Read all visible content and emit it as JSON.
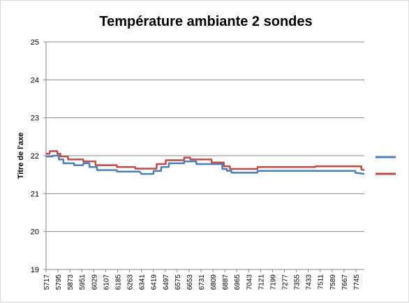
{
  "chart_data": {
    "type": "line",
    "title": "Température ambiante 2 sondes",
    "ylabel": "Titre de l'axe",
    "xlabel": "",
    "ylim": [
      19,
      25
    ],
    "yticks": [
      19,
      20,
      21,
      22,
      23,
      24,
      25
    ],
    "grid": "horizontal",
    "legend": "right",
    "x_tick_labels": [
      "5717",
      "5795",
      "5873",
      "5951",
      "6029",
      "6107",
      "6185",
      "6263",
      "6341",
      "6419",
      "6497",
      "6575",
      "6653",
      "6731",
      "6809",
      "6887",
      "6965",
      "7043",
      "7121",
      "7199",
      "7277",
      "7355",
      "7433",
      "7511",
      "7589",
      "7667",
      "7745"
    ],
    "x_start": 5717,
    "x_step": 78,
    "x_end": 7800,
    "series": [
      {
        "color": "#4a7ebb",
        "points": [
          [
            5717,
            21.98
          ],
          [
            5760,
            21.98
          ],
          [
            5761,
            22.0
          ],
          [
            5800,
            22.0
          ],
          [
            5801,
            21.9
          ],
          [
            5830,
            21.9
          ],
          [
            5831,
            21.8
          ],
          [
            5900,
            21.8
          ],
          [
            5901,
            21.75
          ],
          [
            5960,
            21.75
          ],
          [
            5961,
            21.8
          ],
          [
            6000,
            21.8
          ],
          [
            6001,
            21.7
          ],
          [
            6050,
            21.7
          ],
          [
            6051,
            21.62
          ],
          [
            6180,
            21.62
          ],
          [
            6181,
            21.58
          ],
          [
            6330,
            21.58
          ],
          [
            6340,
            21.52
          ],
          [
            6420,
            21.52
          ],
          [
            6421,
            21.6
          ],
          [
            6470,
            21.6
          ],
          [
            6471,
            21.7
          ],
          [
            6520,
            21.7
          ],
          [
            6521,
            21.8
          ],
          [
            6620,
            21.8
          ],
          [
            6621,
            21.85
          ],
          [
            6700,
            21.85
          ],
          [
            6701,
            21.78
          ],
          [
            6870,
            21.78
          ],
          [
            6871,
            21.65
          ],
          [
            6900,
            21.65
          ],
          [
            6901,
            21.6
          ],
          [
            6930,
            21.6
          ],
          [
            6931,
            21.55
          ],
          [
            7100,
            21.55
          ],
          [
            7101,
            21.6
          ],
          [
            7740,
            21.6
          ],
          [
            7741,
            21.55
          ],
          [
            7800,
            21.52
          ]
        ]
      },
      {
        "color": "#be4b48",
        "points": [
          [
            5717,
            22.05
          ],
          [
            5740,
            22.05
          ],
          [
            5741,
            22.12
          ],
          [
            5790,
            22.12
          ],
          [
            5791,
            22.05
          ],
          [
            5810,
            22.05
          ],
          [
            5811,
            21.98
          ],
          [
            5860,
            21.98
          ],
          [
            5861,
            21.9
          ],
          [
            5960,
            21.9
          ],
          [
            5961,
            21.85
          ],
          [
            6040,
            21.85
          ],
          [
            6041,
            21.75
          ],
          [
            6180,
            21.75
          ],
          [
            6181,
            21.7
          ],
          [
            6300,
            21.7
          ],
          [
            6301,
            21.66
          ],
          [
            6440,
            21.66
          ],
          [
            6441,
            21.78
          ],
          [
            6500,
            21.78
          ],
          [
            6501,
            21.88
          ],
          [
            6620,
            21.88
          ],
          [
            6621,
            21.95
          ],
          [
            6660,
            21.95
          ],
          [
            6661,
            21.9
          ],
          [
            6800,
            21.9
          ],
          [
            6801,
            21.82
          ],
          [
            6880,
            21.82
          ],
          [
            6881,
            21.72
          ],
          [
            6920,
            21.72
          ],
          [
            6921,
            21.65
          ],
          [
            7100,
            21.65
          ],
          [
            7101,
            21.7
          ],
          [
            7480,
            21.7
          ],
          [
            7481,
            21.72
          ],
          [
            7780,
            21.72
          ],
          [
            7781,
            21.64
          ],
          [
            7800,
            21.62
          ]
        ]
      }
    ]
  }
}
